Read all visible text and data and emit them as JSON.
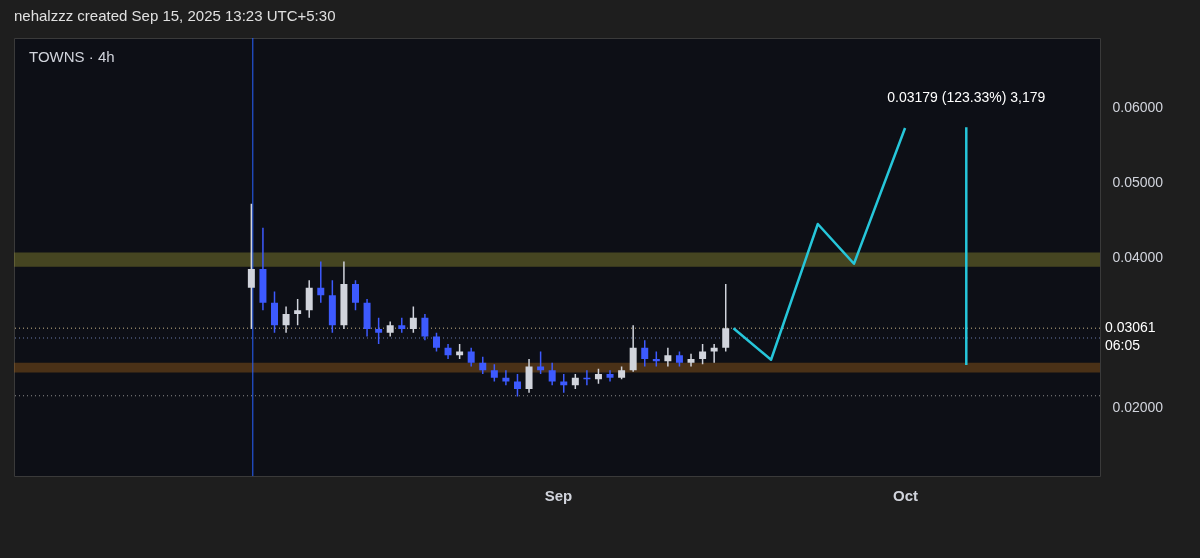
{
  "chart_data": {
    "type": "candlestick",
    "title": "nehalzzz created Sep 15, 2025 13:23 UTC+5:30",
    "subtitle": "TOWNS · 4h",
    "x": [
      "2025-08-05T12:00",
      "2025-08-06T12:00",
      "2025-08-07T12:00",
      "2025-08-08T12:00",
      "2025-08-09T12:00",
      "2025-08-10T12:00",
      "2025-08-11T12:00",
      "2025-08-12T12:00",
      "2025-08-13T12:00",
      "2025-08-14T12:00",
      "2025-08-15T12:00",
      "2025-08-16T12:00",
      "2025-08-17T12:00",
      "2025-08-18T12:00",
      "2025-08-19T12:00",
      "2025-08-20T12:00",
      "2025-08-21T12:00",
      "2025-08-22T12:00",
      "2025-08-23T12:00",
      "2025-08-24T12:00",
      "2025-08-25T12:00",
      "2025-08-26T12:00",
      "2025-08-27T12:00",
      "2025-08-28T12:00",
      "2025-08-29T12:00",
      "2025-08-30T12:00",
      "2025-08-31T12:00",
      "2025-09-01T12:00",
      "2025-09-02T12:00",
      "2025-09-03T12:00",
      "2025-09-04T12:00",
      "2025-09-05T12:00",
      "2025-09-06T12:00",
      "2025-09-07T12:00",
      "2025-09-08T12:00",
      "2025-09-09T12:00",
      "2025-09-10T12:00",
      "2025-09-11T12:00",
      "2025-09-12T12:00",
      "2025-09-13T12:00",
      "2025-09-14T12:00",
      "2025-09-15T12:00"
    ],
    "ohlc": [
      [
        0.036,
        0.0472,
        0.0305,
        0.0385
      ],
      [
        0.0385,
        0.044,
        0.033,
        0.034
      ],
      [
        0.034,
        0.0355,
        0.03,
        0.031
      ],
      [
        0.031,
        0.0335,
        0.03,
        0.0325
      ],
      [
        0.0325,
        0.0345,
        0.031,
        0.033
      ],
      [
        0.033,
        0.037,
        0.032,
        0.036
      ],
      [
        0.036,
        0.0395,
        0.034,
        0.035
      ],
      [
        0.035,
        0.037,
        0.03,
        0.031
      ],
      [
        0.031,
        0.0395,
        0.0305,
        0.0365
      ],
      [
        0.0365,
        0.037,
        0.033,
        0.034
      ],
      [
        0.034,
        0.0345,
        0.0295,
        0.0305
      ],
      [
        0.0305,
        0.032,
        0.0285,
        0.03
      ],
      [
        0.03,
        0.0315,
        0.0295,
        0.031
      ],
      [
        0.031,
        0.032,
        0.03,
        0.0305
      ],
      [
        0.0305,
        0.0335,
        0.03,
        0.032
      ],
      [
        0.032,
        0.0325,
        0.029,
        0.0295
      ],
      [
        0.0295,
        0.03,
        0.0275,
        0.028
      ],
      [
        0.028,
        0.0285,
        0.0265,
        0.027
      ],
      [
        0.027,
        0.0285,
        0.0265,
        0.0275
      ],
      [
        0.0275,
        0.028,
        0.0255,
        0.026
      ],
      [
        0.026,
        0.0268,
        0.0245,
        0.025
      ],
      [
        0.025,
        0.0258,
        0.0235,
        0.024
      ],
      [
        0.024,
        0.025,
        0.023,
        0.0235
      ],
      [
        0.0235,
        0.0245,
        0.0215,
        0.0225
      ],
      [
        0.0225,
        0.0265,
        0.022,
        0.0255
      ],
      [
        0.0255,
        0.0275,
        0.0245,
        0.025
      ],
      [
        0.025,
        0.026,
        0.023,
        0.0235
      ],
      [
        0.0235,
        0.0245,
        0.022,
        0.023
      ],
      [
        0.023,
        0.0245,
        0.0225,
        0.024
      ],
      [
        0.024,
        0.025,
        0.023,
        0.0238
      ],
      [
        0.0238,
        0.0252,
        0.0232,
        0.0245
      ],
      [
        0.0245,
        0.025,
        0.0235,
        0.024
      ],
      [
        0.024,
        0.0255,
        0.0238,
        0.025
      ],
      [
        0.025,
        0.031,
        0.0248,
        0.028
      ],
      [
        0.028,
        0.029,
        0.0255,
        0.0265
      ],
      [
        0.0265,
        0.0275,
        0.0255,
        0.0262
      ],
      [
        0.0262,
        0.028,
        0.0255,
        0.027
      ],
      [
        0.027,
        0.0275,
        0.0255,
        0.026
      ],
      [
        0.026,
        0.0272,
        0.0255,
        0.0265
      ],
      [
        0.0265,
        0.0285,
        0.0258,
        0.0275
      ],
      [
        0.0275,
        0.0285,
        0.026,
        0.028
      ],
      [
        0.028,
        0.0365,
        0.0275,
        0.0306
      ]
    ],
    "colors": [
      "#d1d4dc",
      "#3d5afe",
      "#3d5afe",
      "#d1d4dc",
      "#d1d4dc",
      "#d1d4dc",
      "#3d5afe",
      "#3d5afe",
      "#d1d4dc",
      "#3d5afe",
      "#3d5afe",
      "#3d5afe",
      "#d1d4dc",
      "#3d5afe",
      "#d1d4dc",
      "#3d5afe",
      "#3d5afe",
      "#3d5afe",
      "#d1d4dc",
      "#3d5afe",
      "#3d5afe",
      "#3d5afe",
      "#3d5afe",
      "#3d5afe",
      "#d1d4dc",
      "#3d5afe",
      "#3d5afe",
      "#3d5afe",
      "#d1d4dc",
      "#3d5afe",
      "#d1d4dc",
      "#3d5afe",
      "#d1d4dc",
      "#d1d4dc",
      "#3d5afe",
      "#3d5afe",
      "#d1d4dc",
      "#3d5afe",
      "#d1d4dc",
      "#d1d4dc",
      "#d1d4dc",
      "#d1d4dc"
    ],
    "series": [
      {
        "type": "line",
        "color": "#26c6da",
        "x": [
          "2025-09-16T04:00",
          "2025-09-19T10:00",
          "2025-09-23T11:00",
          "2025-09-26T14:00",
          "2025-10-01T00:00"
        ],
        "values": [
          0.0306,
          0.0264,
          0.0445,
          0.0392,
          0.0573
        ]
      },
      {
        "type": "line",
        "color": "#26c6da",
        "x": [
          "2025-10-06T07:00",
          "2025-10-06T07:00"
        ],
        "values": [
          0.0257,
          0.0574
        ]
      }
    ],
    "bands": [
      {
        "axis": "y",
        "from": 0.0388,
        "to": 0.0407,
        "color": "#9c9632"
      },
      {
        "axis": "y",
        "from": 0.0247,
        "to": 0.026,
        "color": "#a8641a"
      }
    ],
    "ref_lines": [
      {
        "axis": "y",
        "value": 0.03061,
        "label": "0.03061",
        "color": "#c9b48a",
        "line_style": "dotted"
      },
      {
        "axis": "y",
        "value": 0.0293,
        "color": "#6a7aa8",
        "line_style": "dotted"
      },
      {
        "axis": "y",
        "value": 0.0216,
        "color": "#8a8a8a",
        "line_style": "dotted"
      },
      {
        "axis": "x",
        "value": "2025-08-05T15:00",
        "color": "#2962ff",
        "line_style": "solid"
      }
    ],
    "annotations": [
      "0.03179 (123.33%) 3,179",
      "06:05"
    ],
    "xlim": [
      "2025-07-16T10:00",
      "2025-10-17T10:00"
    ],
    "xticks": [
      {
        "value": "2025-09-01",
        "label": "Sep"
      },
      {
        "value": "2025-10-01",
        "label": "Oct"
      }
    ],
    "ylim": [
      0.0109,
      0.0693
    ],
    "yticks": [
      {
        "value": 0.02,
        "label": "0.02000"
      },
      {
        "value": 0.04,
        "label": "0.04000"
      },
      {
        "value": 0.05,
        "label": "0.05000"
      },
      {
        "value": 0.06,
        "label": "0.06000"
      }
    ]
  }
}
